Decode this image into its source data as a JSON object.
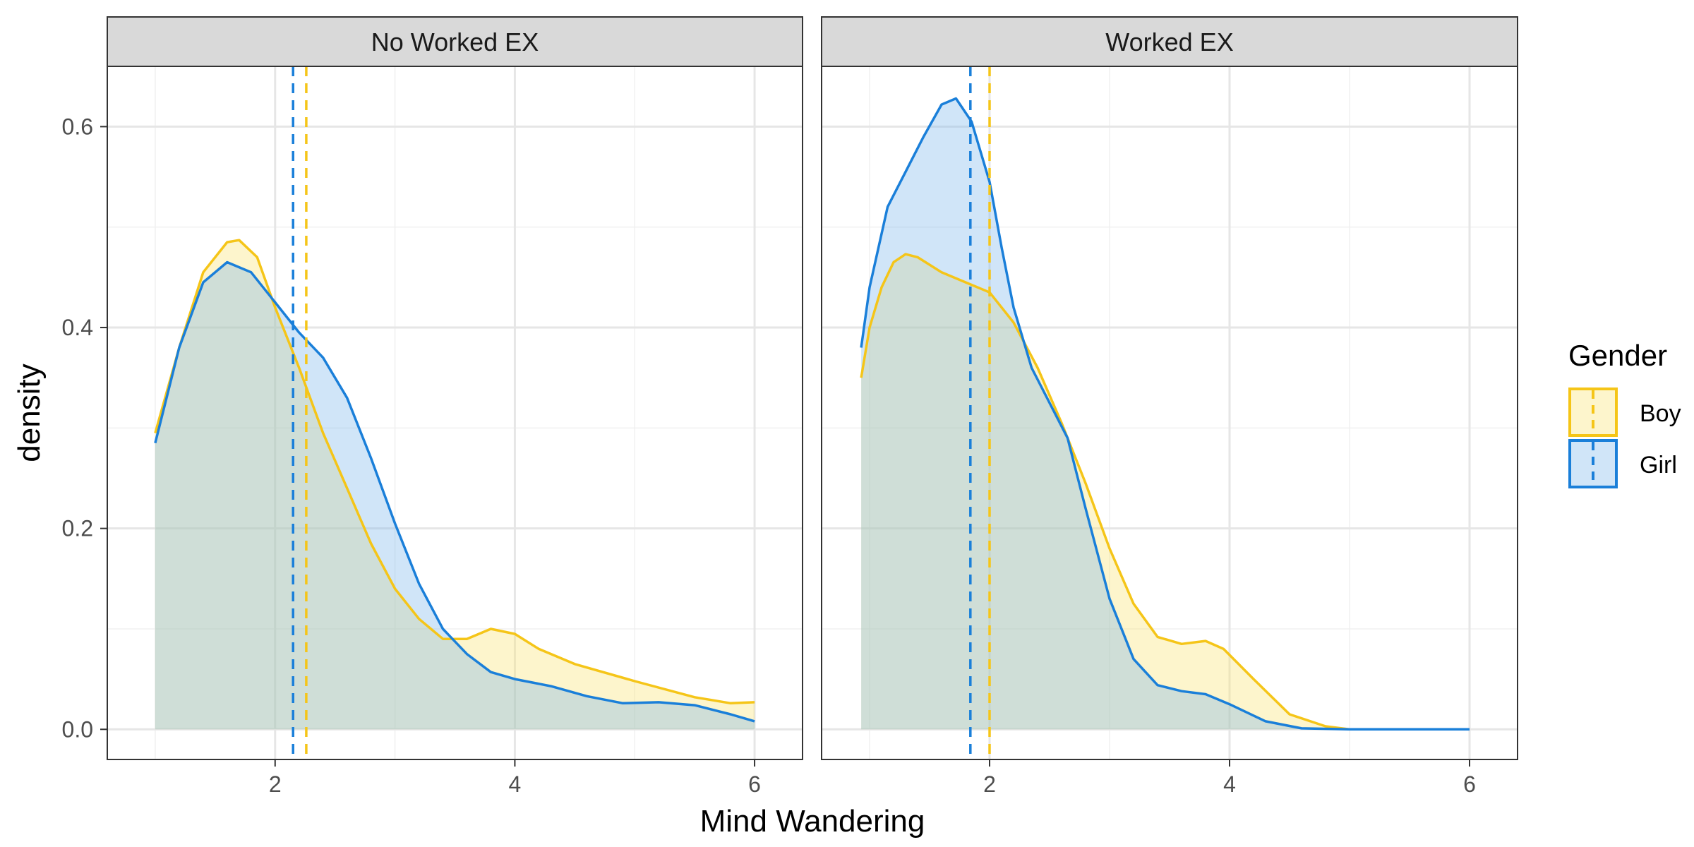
{
  "chart_data": {
    "type": "area",
    "xlabel": "Mind Wandering",
    "ylabel": "density",
    "xlim": [
      0.6,
      6.4
    ],
    "ylim": [
      -0.03,
      0.66
    ],
    "x_ticks": [
      2,
      4,
      6
    ],
    "y_ticks": [
      0.0,
      0.2,
      0.4,
      0.6
    ],
    "y_tick_labels": [
      "0.0",
      "0.2",
      "0.4",
      "0.6"
    ],
    "grid": true,
    "legend": {
      "title": "Gender",
      "position": "right",
      "entries": [
        {
          "label": "Boy",
          "color": "#F5C518"
        },
        {
          "label": "Girl",
          "color": "#1A7FD9"
        }
      ]
    },
    "colors": {
      "Boy": "#F5C518",
      "Girl": "#1A7FD9",
      "Boy_fill": "rgba(250,225,110,0.35)",
      "Girl_fill": "rgba(120,180,235,0.35)"
    },
    "panels": [
      {
        "title": "No Worked EX",
        "series": [
          {
            "name": "Boy",
            "mean": 2.26,
            "points": [
              [
                1.0,
                0.295
              ],
              [
                1.2,
                0.38
              ],
              [
                1.4,
                0.455
              ],
              [
                1.6,
                0.485
              ],
              [
                1.7,
                0.487
              ],
              [
                1.85,
                0.47
              ],
              [
                2.0,
                0.42
              ],
              [
                2.2,
                0.36
              ],
              [
                2.4,
                0.295
              ],
              [
                2.6,
                0.24
              ],
              [
                2.8,
                0.185
              ],
              [
                3.0,
                0.14
              ],
              [
                3.2,
                0.11
              ],
              [
                3.4,
                0.09
              ],
              [
                3.6,
                0.09
              ],
              [
                3.8,
                0.1
              ],
              [
                4.0,
                0.095
              ],
              [
                4.2,
                0.08
              ],
              [
                4.5,
                0.065
              ],
              [
                5.0,
                0.048
              ],
              [
                5.5,
                0.032
              ],
              [
                5.8,
                0.026
              ],
              [
                6.0,
                0.027
              ]
            ]
          },
          {
            "name": "Girl",
            "mean": 2.15,
            "points": [
              [
                1.0,
                0.285
              ],
              [
                1.2,
                0.38
              ],
              [
                1.4,
                0.445
              ],
              [
                1.6,
                0.465
              ],
              [
                1.8,
                0.455
              ],
              [
                2.0,
                0.425
              ],
              [
                2.2,
                0.395
              ],
              [
                2.4,
                0.37
              ],
              [
                2.6,
                0.33
              ],
              [
                2.8,
                0.27
              ],
              [
                3.0,
                0.205
              ],
              [
                3.2,
                0.145
              ],
              [
                3.4,
                0.1
              ],
              [
                3.6,
                0.075
              ],
              [
                3.8,
                0.057
              ],
              [
                4.0,
                0.05
              ],
              [
                4.3,
                0.043
              ],
              [
                4.6,
                0.033
              ],
              [
                4.9,
                0.026
              ],
              [
                5.2,
                0.027
              ],
              [
                5.5,
                0.024
              ],
              [
                5.8,
                0.015
              ],
              [
                6.0,
                0.008
              ]
            ]
          }
        ]
      },
      {
        "title": "Worked EX",
        "series": [
          {
            "name": "Boy",
            "mean": 2.0,
            "points": [
              [
                0.93,
                0.35
              ],
              [
                1.0,
                0.4
              ],
              [
                1.1,
                0.44
              ],
              [
                1.2,
                0.465
              ],
              [
                1.3,
                0.473
              ],
              [
                1.4,
                0.47
              ],
              [
                1.6,
                0.455
              ],
              [
                1.8,
                0.445
              ],
              [
                2.0,
                0.435
              ],
              [
                2.2,
                0.405
              ],
              [
                2.4,
                0.36
              ],
              [
                2.6,
                0.305
              ],
              [
                2.8,
                0.245
              ],
              [
                3.0,
                0.18
              ],
              [
                3.2,
                0.125
              ],
              [
                3.4,
                0.092
              ],
              [
                3.6,
                0.085
              ],
              [
                3.8,
                0.088
              ],
              [
                3.95,
                0.08
              ],
              [
                4.2,
                0.05
              ],
              [
                4.5,
                0.015
              ],
              [
                4.8,
                0.003
              ],
              [
                5.0,
                0.0
              ],
              [
                6.0,
                0.0
              ]
            ]
          },
          {
            "name": "Girl",
            "mean": 1.84,
            "points": [
              [
                0.93,
                0.38
              ],
              [
                1.0,
                0.44
              ],
              [
                1.15,
                0.52
              ],
              [
                1.3,
                0.555
              ],
              [
                1.45,
                0.59
              ],
              [
                1.6,
                0.622
              ],
              [
                1.72,
                0.628
              ],
              [
                1.85,
                0.605
              ],
              [
                2.0,
                0.545
              ],
              [
                2.1,
                0.48
              ],
              [
                2.2,
                0.42
              ],
              [
                2.35,
                0.36
              ],
              [
                2.5,
                0.325
              ],
              [
                2.65,
                0.29
              ],
              [
                2.8,
                0.22
              ],
              [
                3.0,
                0.13
              ],
              [
                3.2,
                0.07
              ],
              [
                3.4,
                0.044
              ],
              [
                3.6,
                0.038
              ],
              [
                3.8,
                0.035
              ],
              [
                4.0,
                0.025
              ],
              [
                4.3,
                0.008
              ],
              [
                4.6,
                0.001
              ],
              [
                5.0,
                0.0
              ],
              [
                6.0,
                0.0
              ]
            ]
          }
        ]
      }
    ]
  }
}
